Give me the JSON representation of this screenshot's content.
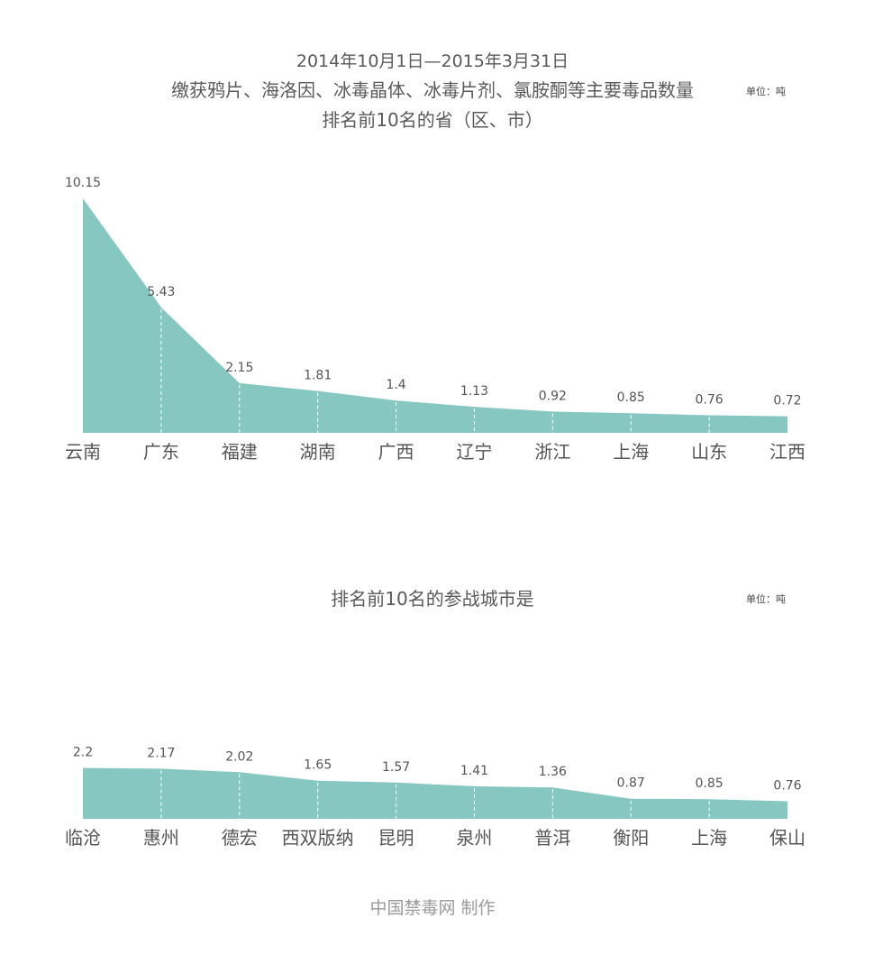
{
  "title": {
    "line1": "2014年10月1日—2015年3月31日",
    "line2": "缴获鸦片、海洛因、冰毒晶体、冰毒片剂、氯胺酮等主要毒品数量",
    "line3": "排名前10名的省（区、市）"
  },
  "unit_label": "单位：吨",
  "chart2_title": "排名前10名的参战城市是",
  "footer": "中国禁毒网 制作",
  "colors": {
    "fill": "#86c8c1",
    "divider": "#ffffff",
    "label": "#555555"
  },
  "chart_data": [
    {
      "type": "area",
      "title": "排名前10名的省（区、市）",
      "unit": "单位：吨",
      "categories": [
        "云南",
        "广东",
        "福建",
        "湖南",
        "广西",
        "辽宁",
        "浙江",
        "上海",
        "山东",
        "江西"
      ],
      "values": [
        10.15,
        5.43,
        2.15,
        1.81,
        1.4,
        1.13,
        0.92,
        0.85,
        0.76,
        0.72
      ],
      "data_labels": [
        "10.15",
        "5.43",
        "2.15",
        "1.81",
        "1.4",
        "1.13",
        "0.92",
        "0.85",
        "0.76",
        "0.72"
      ],
      "ylim": [
        0,
        10.15
      ],
      "grid": false
    },
    {
      "type": "area",
      "title": "排名前10名的参战城市是",
      "unit": "单位：吨",
      "categories": [
        "临沧",
        "惠州",
        "德宏",
        "西双版纳",
        "昆明",
        "泉州",
        "普洱",
        "衡阳",
        "上海",
        "保山"
      ],
      "values": [
        2.2,
        2.17,
        2.02,
        1.65,
        1.57,
        1.41,
        1.36,
        0.87,
        0.85,
        0.76
      ],
      "data_labels": [
        "2.2",
        "2.17",
        "2.02",
        "1.65",
        "1.57",
        "1.41",
        "1.36",
        "0.87",
        "0.85",
        "0.76"
      ],
      "ylim": [
        0,
        10.15
      ],
      "grid": false
    }
  ]
}
